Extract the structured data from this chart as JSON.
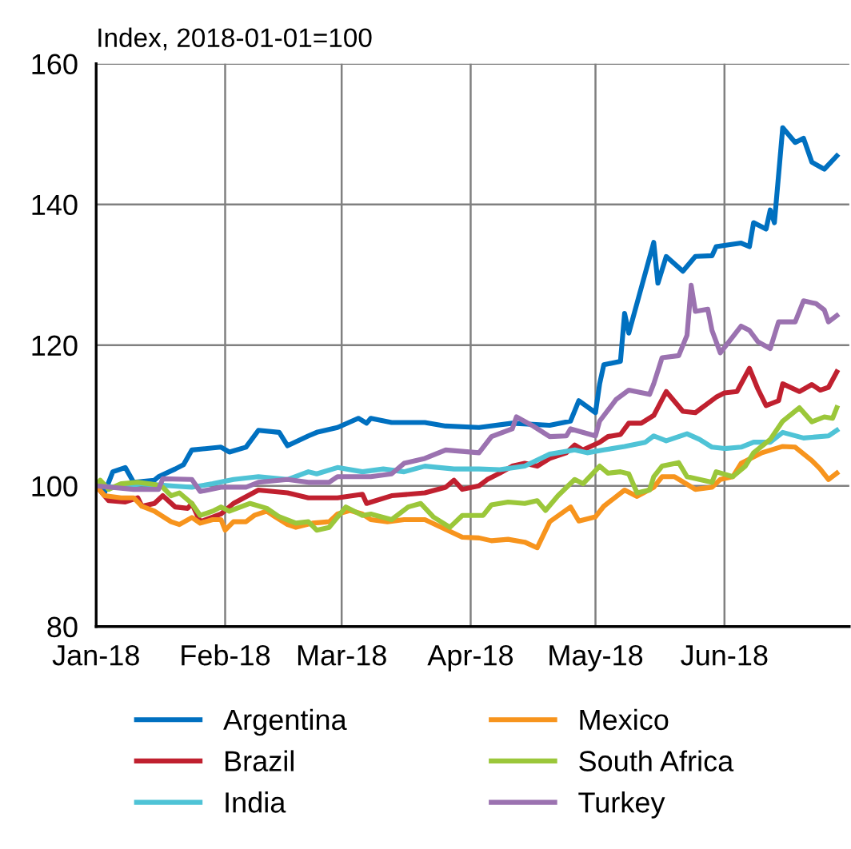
{
  "chart_data": {
    "type": "line",
    "ylabel": "Index, 2018-01-01=100",
    "xlim": [
      "2018-01-01",
      "2018-07-01"
    ],
    "xticks": [
      {
        "value": "2018-01-01",
        "label": "Jan-18"
      },
      {
        "value": "2018-02-01",
        "label": "Feb-18"
      },
      {
        "value": "2018-03-01",
        "label": "Mar-18"
      },
      {
        "value": "2018-04-01",
        "label": "Apr-18"
      },
      {
        "value": "2018-05-01",
        "label": "May-18"
      },
      {
        "value": "2018-06-01",
        "label": "Jun-18"
      }
    ],
    "ylim": [
      80,
      160
    ],
    "yticks": [
      80,
      100,
      120,
      140,
      160
    ],
    "grid": true,
    "legend": "bottom",
    "marker": "none",
    "line_style": "solid",
    "series": [
      {
        "name": "Argentina",
        "color": "#0070c0",
        "x": [
          "2018-01-01",
          "2018-01-03",
          "2018-01-05",
          "2018-01-08",
          "2018-01-10",
          "2018-01-15",
          "2018-01-16",
          "2018-01-20",
          "2018-01-22",
          "2018-01-24",
          "2018-01-31",
          "2018-02-02",
          "2018-02-06",
          "2018-02-09",
          "2018-02-14",
          "2018-02-16",
          "2018-02-21",
          "2018-02-23",
          "2018-02-28",
          "2018-03-05",
          "2018-03-07",
          "2018-03-08",
          "2018-03-13",
          "2018-03-21",
          "2018-03-26",
          "2018-04-03",
          "2018-04-11",
          "2018-04-20",
          "2018-04-25",
          "2018-04-27",
          "2018-05-01",
          "2018-05-02",
          "2018-05-03",
          "2018-05-07",
          "2018-05-08",
          "2018-05-09",
          "2018-05-15",
          "2018-05-16",
          "2018-05-18",
          "2018-05-22",
          "2018-05-25",
          "2018-05-29",
          "2018-05-30",
          "2018-06-05",
          "2018-06-07",
          "2018-06-08",
          "2018-06-11",
          "2018-06-12",
          "2018-06-13",
          "2018-06-15",
          "2018-06-18",
          "2018-06-20",
          "2018-06-22",
          "2018-06-25",
          "2018-06-28"
        ],
        "values": [
          100,
          99,
          102,
          102.6,
          100.5,
          100.8,
          101.3,
          102.4,
          103,
          105.1,
          105.5,
          104.8,
          105.5,
          107.9,
          107.6,
          105.7,
          107.1,
          107.6,
          108.3,
          109.6,
          108.9,
          109.6,
          109,
          109,
          108.5,
          108.3,
          108.9,
          108.6,
          109.2,
          112.1,
          110.4,
          114.5,
          117.2,
          117.7,
          124.5,
          121.7,
          134.6,
          128.8,
          132.6,
          130.5,
          132.6,
          132.7,
          134,
          134.5,
          134,
          137.4,
          136.5,
          139.2,
          137.4,
          150.9,
          148.8,
          149.4,
          146,
          145,
          146.9
        ]
      },
      {
        "name": "Brazil",
        "color": "#c0202f",
        "x": [
          "2018-01-01",
          "2018-01-04",
          "2018-01-08",
          "2018-01-11",
          "2018-01-12",
          "2018-01-15",
          "2018-01-17",
          "2018-01-20",
          "2018-01-23",
          "2018-01-24",
          "2018-01-26",
          "2018-01-31",
          "2018-02-03",
          "2018-02-09",
          "2018-02-16",
          "2018-02-21",
          "2018-02-28",
          "2018-03-06",
          "2018-03-07",
          "2018-03-13",
          "2018-03-21",
          "2018-03-26",
          "2018-03-28",
          "2018-03-30",
          "2018-04-03",
          "2018-04-05",
          "2018-04-08",
          "2018-04-11",
          "2018-04-14",
          "2018-04-17",
          "2018-04-20",
          "2018-04-24",
          "2018-04-26",
          "2018-04-28",
          "2018-05-02",
          "2018-05-04",
          "2018-05-07",
          "2018-05-09",
          "2018-05-12",
          "2018-05-15",
          "2018-05-18",
          "2018-05-22",
          "2018-05-25",
          "2018-05-30",
          "2018-06-01",
          "2018-06-04",
          "2018-06-07",
          "2018-06-09",
          "2018-06-11",
          "2018-06-14",
          "2018-06-15",
          "2018-06-19",
          "2018-06-22",
          "2018-06-24",
          "2018-06-26",
          "2018-06-28"
        ],
        "values": [
          100,
          97.9,
          97.7,
          98.3,
          97.1,
          97.5,
          98.6,
          97,
          96.8,
          97.5,
          94.9,
          96,
          97.5,
          99.4,
          99,
          98.3,
          98.3,
          98.8,
          97.5,
          98.6,
          99,
          99.8,
          100.8,
          99.5,
          100,
          100.9,
          101.8,
          102.8,
          103.2,
          102.8,
          103.9,
          104.7,
          105.8,
          105.1,
          106.2,
          107,
          107.3,
          108.9,
          108.9,
          110,
          113.4,
          110.6,
          110.4,
          112.6,
          113.2,
          113.4,
          116.7,
          113.8,
          111.4,
          112.1,
          114.5,
          113.4,
          114.4,
          113.6,
          114,
          116.2
        ]
      },
      {
        "name": "India",
        "color": "#4fc3d6",
        "x": [
          "2018-01-01",
          "2018-01-06",
          "2018-01-12",
          "2018-01-19",
          "2018-01-24",
          "2018-01-29",
          "2018-02-03",
          "2018-02-09",
          "2018-02-16",
          "2018-02-21",
          "2018-02-23",
          "2018-02-28",
          "2018-03-06",
          "2018-03-11",
          "2018-03-16",
          "2018-03-21",
          "2018-03-28",
          "2018-04-03",
          "2018-04-08",
          "2018-04-14",
          "2018-04-20",
          "2018-04-26",
          "2018-04-29",
          "2018-05-03",
          "2018-05-08",
          "2018-05-13",
          "2018-05-15",
          "2018-05-18",
          "2018-05-23",
          "2018-05-26",
          "2018-05-29",
          "2018-06-01",
          "2018-06-05",
          "2018-06-08",
          "2018-06-12",
          "2018-06-15",
          "2018-06-20",
          "2018-06-26",
          "2018-06-28"
        ],
        "values": [
          100,
          99.8,
          100.3,
          100,
          99.8,
          100.3,
          100.9,
          101.3,
          100.9,
          102,
          101.7,
          102.6,
          102,
          102.4,
          102,
          102.8,
          102.4,
          102.4,
          102.3,
          102.8,
          104.5,
          105.1,
          104.7,
          105.1,
          105.6,
          106.2,
          107.1,
          106.4,
          107.4,
          106.6,
          105.5,
          105.3,
          105.5,
          106.2,
          106.2,
          107.6,
          106.8,
          107.1,
          107.9
        ]
      },
      {
        "name": "Mexico",
        "color": "#f7941d",
        "x": [
          "2018-01-01",
          "2018-01-03",
          "2018-01-07",
          "2018-01-10",
          "2018-01-12",
          "2018-01-15",
          "2018-01-19",
          "2018-01-21",
          "2018-01-24",
          "2018-01-26",
          "2018-01-29",
          "2018-01-31",
          "2018-02-01",
          "2018-02-03",
          "2018-02-06",
          "2018-02-08",
          "2018-02-11",
          "2018-02-13",
          "2018-02-16",
          "2018-02-18",
          "2018-02-22",
          "2018-02-26",
          "2018-02-28",
          "2018-03-03",
          "2018-03-06",
          "2018-03-08",
          "2018-03-12",
          "2018-03-16",
          "2018-03-21",
          "2018-03-25",
          "2018-03-30",
          "2018-04-03",
          "2018-04-06",
          "2018-04-10",
          "2018-04-14",
          "2018-04-17",
          "2018-04-20",
          "2018-04-25",
          "2018-04-27",
          "2018-05-01",
          "2018-05-03",
          "2018-05-08",
          "2018-05-11",
          "2018-05-15",
          "2018-05-17",
          "2018-05-20",
          "2018-05-25",
          "2018-05-29",
          "2018-05-31",
          "2018-06-03",
          "2018-06-05",
          "2018-06-10",
          "2018-06-15",
          "2018-06-18",
          "2018-06-22",
          "2018-06-24",
          "2018-06-26",
          "2018-06-28"
        ],
        "values": [
          100,
          98.6,
          98.3,
          98.3,
          97.1,
          96.4,
          94.9,
          94.5,
          95.5,
          94.7,
          95.2,
          95.2,
          93.7,
          94.9,
          94.9,
          95.8,
          96.4,
          95.6,
          94.5,
          94.1,
          94.7,
          94.9,
          96,
          96.5,
          96,
          95.2,
          94.9,
          95.2,
          95.2,
          94.1,
          92.7,
          92.6,
          92.2,
          92.4,
          92,
          91.2,
          94.9,
          97,
          95,
          95.6,
          97.1,
          99.4,
          98.5,
          99.8,
          101.3,
          101.3,
          99.5,
          99.8,
          100.9,
          101.3,
          103.2,
          104.7,
          105.6,
          105.5,
          103.6,
          102.4,
          100.9,
          101.8
        ]
      },
      {
        "name": "South Africa",
        "color": "#9bc73a",
        "x": [
          "2018-01-01",
          "2018-01-02",
          "2018-01-04",
          "2018-01-07",
          "2018-01-11",
          "2018-01-15",
          "2018-01-17",
          "2018-01-19",
          "2018-01-21",
          "2018-01-24",
          "2018-01-26",
          "2018-01-29",
          "2018-01-31",
          "2018-02-02",
          "2018-02-07",
          "2018-02-11",
          "2018-02-14",
          "2018-02-18",
          "2018-02-21",
          "2018-02-23",
          "2018-02-26",
          "2018-03-02",
          "2018-03-06",
          "2018-03-08",
          "2018-03-13",
          "2018-03-17",
          "2018-03-20",
          "2018-03-23",
          "2018-03-27",
          "2018-03-30",
          "2018-04-04",
          "2018-04-06",
          "2018-04-10",
          "2018-04-14",
          "2018-04-17",
          "2018-04-19",
          "2018-04-22",
          "2018-04-26",
          "2018-04-28",
          "2018-05-02",
          "2018-05-04",
          "2018-05-07",
          "2018-05-09",
          "2018-05-11",
          "2018-05-14",
          "2018-05-15",
          "2018-05-17",
          "2018-05-21",
          "2018-05-23",
          "2018-05-26",
          "2018-05-29",
          "2018-05-30",
          "2018-06-03",
          "2018-06-06",
          "2018-06-08",
          "2018-06-12",
          "2018-06-15",
          "2018-06-19",
          "2018-06-22",
          "2018-06-25",
          "2018-06-27",
          "2018-06-28"
        ],
        "values": [
          100,
          100.8,
          99.5,
          100.3,
          100.5,
          100.2,
          99.8,
          98.6,
          99,
          97.5,
          95.8,
          96.4,
          97,
          96.4,
          97.5,
          96.8,
          95.6,
          94.7,
          94.9,
          93.7,
          94.1,
          97,
          95.8,
          96,
          95.2,
          97,
          97.5,
          95.6,
          94.1,
          95.8,
          95.8,
          97.3,
          97.7,
          97.5,
          97.9,
          96.5,
          98.6,
          100.9,
          100.3,
          102.8,
          101.8,
          102,
          101.7,
          99,
          99.4,
          101.3,
          102.8,
          103.3,
          101.3,
          100.9,
          100.5,
          102,
          101.3,
          102.8,
          104.7,
          106.6,
          109.2,
          111.1,
          109.1,
          109.8,
          109.6,
          111.1
        ]
      },
      {
        "name": "Turkey",
        "color": "#9b72b0",
        "x": [
          "2018-01-01",
          "2018-01-10",
          "2018-01-16",
          "2018-01-17",
          "2018-01-24",
          "2018-01-26",
          "2018-01-31",
          "2018-02-06",
          "2018-02-09",
          "2018-02-16",
          "2018-02-21",
          "2018-02-26",
          "2018-02-28",
          "2018-03-08",
          "2018-03-13",
          "2018-03-16",
          "2018-03-21",
          "2018-03-26",
          "2018-04-03",
          "2018-04-06",
          "2018-04-11",
          "2018-04-12",
          "2018-04-16",
          "2018-04-20",
          "2018-04-24",
          "2018-04-25",
          "2018-05-01",
          "2018-05-02",
          "2018-05-06",
          "2018-05-09",
          "2018-05-14",
          "2018-05-15",
          "2018-05-17",
          "2018-05-21",
          "2018-05-23",
          "2018-05-24",
          "2018-05-25",
          "2018-05-28",
          "2018-05-29",
          "2018-05-31",
          "2018-06-05",
          "2018-06-07",
          "2018-06-09",
          "2018-06-12",
          "2018-06-14",
          "2018-06-18",
          "2018-06-20",
          "2018-06-23",
          "2018-06-25",
          "2018-06-26",
          "2018-06-28"
        ],
        "values": [
          100,
          99.5,
          99.5,
          101,
          100.9,
          99.2,
          99.8,
          99.8,
          100.5,
          100.9,
          100.5,
          100.5,
          101.3,
          101.3,
          101.7,
          103.2,
          103.9,
          105.1,
          104.7,
          107,
          108.1,
          109.8,
          108.5,
          107,
          107.1,
          108.1,
          107.1,
          109.2,
          112.3,
          113.6,
          113,
          114.5,
          118.2,
          118.5,
          121.4,
          128.5,
          124.8,
          125.1,
          122.1,
          118.9,
          122.7,
          122.1,
          120.5,
          119.5,
          123.3,
          123.3,
          126.3,
          125.9,
          125,
          123.3,
          124.2
        ]
      }
    ]
  }
}
